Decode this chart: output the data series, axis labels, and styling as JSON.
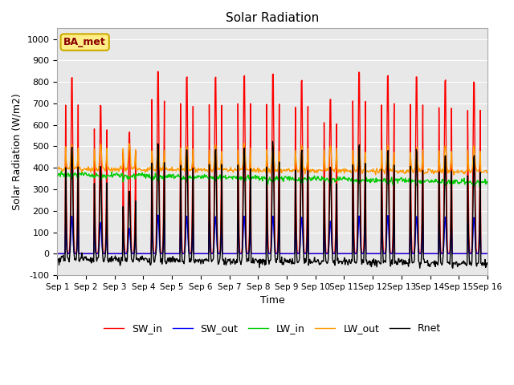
{
  "title": "Solar Radiation",
  "xlabel": "Time",
  "ylabel": "Solar Radiation (W/m2)",
  "ylim": [
    -100,
    1050
  ],
  "yticks": [
    -100,
    0,
    100,
    200,
    300,
    400,
    500,
    600,
    700,
    800,
    900,
    1000
  ],
  "n_days": 15,
  "series_colors": {
    "SW_in": "#ff0000",
    "SW_out": "#0000ff",
    "LW_in": "#00cc00",
    "LW_out": "#ff9900",
    "Rnet": "#000000"
  },
  "legend_labels": [
    "SW_in",
    "SW_out",
    "LW_in",
    "LW_out",
    "Rnet"
  ],
  "annotation_text": "BA_met",
  "annotation_facecolor": "#ffee88",
  "annotation_edgecolor": "#ccaa00",
  "annotation_textcolor": "#880000",
  "bg_color": "#e8e8e8",
  "grid_color": "#ffffff",
  "line_width": 1.0,
  "SW_in_peaks": [
    870,
    730,
    595,
    895,
    870,
    870,
    875,
    880,
    855,
    760,
    895,
    875,
    870,
    855,
    840
  ],
  "figsize": [
    6.4,
    4.8
  ],
  "dpi": 100
}
